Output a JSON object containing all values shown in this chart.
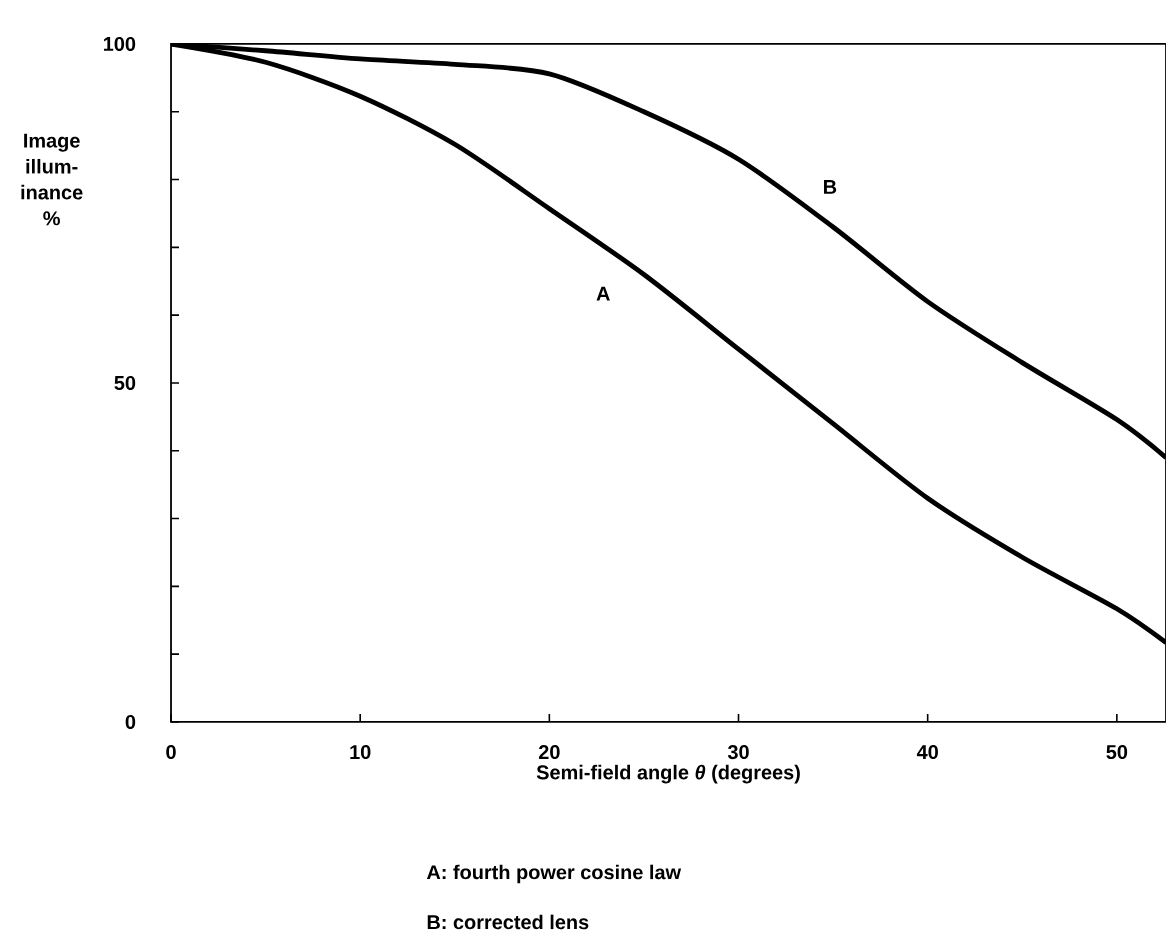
{
  "chart_data": {
    "type": "line",
    "xlabel": "Semi-field angle *θ*  (degrees)",
    "ylabel": "Image illum-inance %",
    "x": [
      0,
      5,
      10,
      15,
      20,
      25,
      30,
      35,
      40,
      45,
      50,
      52.6
    ],
    "series": [
      {
        "name": "A",
        "color": "#000000",
        "values": [
          100,
          97.3,
          92.3,
          85.2,
          75.7,
          66,
          55,
          44,
          33,
          24.3,
          16.7,
          11.7
        ]
      },
      {
        "name": "B",
        "color": "#000000",
        "values": [
          100,
          99,
          97.8,
          97,
          95.6,
          90,
          83,
          73,
          62,
          53,
          44.6,
          39
        ]
      }
    ],
    "xlim": [
      0,
      52.6
    ],
    "ylim": [
      0,
      100
    ],
    "xticks": [
      0,
      10,
      20,
      30,
      40,
      50
    ],
    "yticks": [
      0,
      {
        "value": 10,
        "label": null
      },
      {
        "value": 20,
        "label": null
      },
      {
        "value": 30,
        "label": null
      },
      {
        "value": 40,
        "label": null
      },
      50,
      {
        "value": 60,
        "label": null
      },
      {
        "value": 70,
        "label": null
      },
      {
        "value": 80,
        "label": null
      },
      {
        "value": 90,
        "label": null
      },
      100
    ],
    "annotations": [
      "A: fourth power cosine law",
      "B: corrected lens"
    ],
    "grid": false,
    "legend": false,
    "marker": "none",
    "line_style": "solid"
  }
}
